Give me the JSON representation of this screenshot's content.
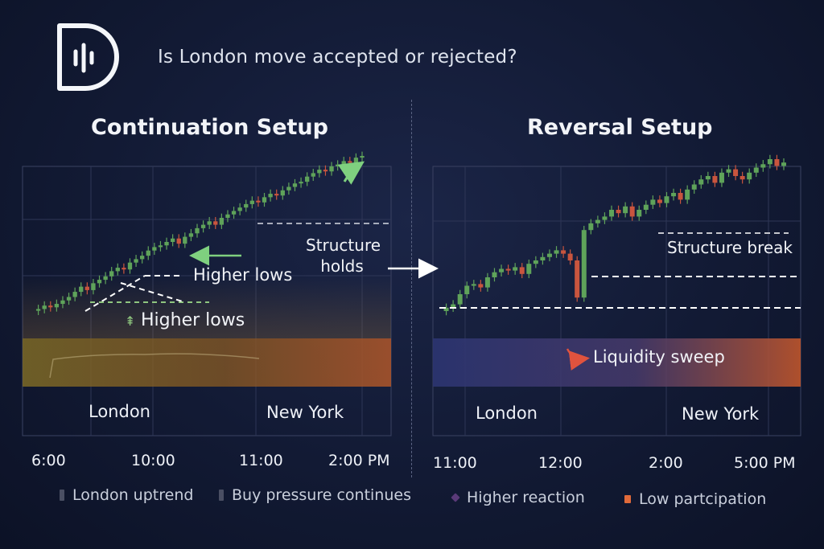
{
  "header": {
    "title": "Is London move accepted or rejected?"
  },
  "colors": {
    "background": "#141c38",
    "bullish": "#5fa35a",
    "bearish": "#c9553e",
    "band_left": "#8a6a2a",
    "band_right": "#3a3f7a",
    "arrow_green": "#6bc46b",
    "arrow_red": "#d9473a"
  },
  "chart_data": [
    {
      "type": "candlestick",
      "title": "Continuation Setup",
      "sessions": [
        "London",
        "New York"
      ],
      "x_ticks": [
        "6:00",
        "10:00",
        "11:00",
        "2:00 PM"
      ],
      "annotations": [
        "Structure holds",
        "Higher lows",
        "Higher lows"
      ],
      "trend": "uptrend",
      "price_path": [
        10,
        11,
        13,
        12,
        14,
        16,
        18,
        21,
        24,
        22,
        26,
        28,
        30,
        33,
        35,
        34,
        38,
        40,
        42,
        45,
        47,
        48,
        50,
        52,
        49,
        53,
        55,
        58,
        60,
        62,
        60,
        64,
        66,
        68,
        70,
        72,
        74,
        73,
        76,
        78,
        77,
        80,
        82,
        84,
        85,
        88,
        90,
        92,
        91,
        94,
        95,
        97,
        96,
        99,
        100
      ]
    },
    {
      "type": "candlestick",
      "title": "Reversal Setup",
      "sessions": [
        "London",
        "New York"
      ],
      "x_ticks": [
        "11:00",
        "12:00",
        "2:00",
        "5:00 PM"
      ],
      "annotations": [
        "Structure break",
        "Liquidity sweep"
      ],
      "trend": "sweep then reversal up",
      "price_path": [
        10,
        12,
        14,
        20,
        25,
        26,
        24,
        30,
        33,
        35,
        34,
        36,
        32,
        38,
        40,
        42,
        44,
        46,
        44,
        40,
        18,
        58,
        62,
        64,
        66,
        70,
        68,
        72,
        66,
        70,
        73,
        76,
        74,
        78,
        80,
        76,
        82,
        85,
        88,
        90,
        86,
        92,
        94,
        90,
        88,
        92,
        95,
        97,
        100,
        96,
        98
      ]
    }
  ],
  "legend": [
    {
      "label": "London uptrend",
      "color": "#4a4f63"
    },
    {
      "label": "Buy pressure continues",
      "color": "#4a4f63"
    },
    {
      "label": "Higher reaction",
      "color": "#5a3a78"
    },
    {
      "label": "Low partcipation",
      "color": "#e06a3a"
    }
  ]
}
